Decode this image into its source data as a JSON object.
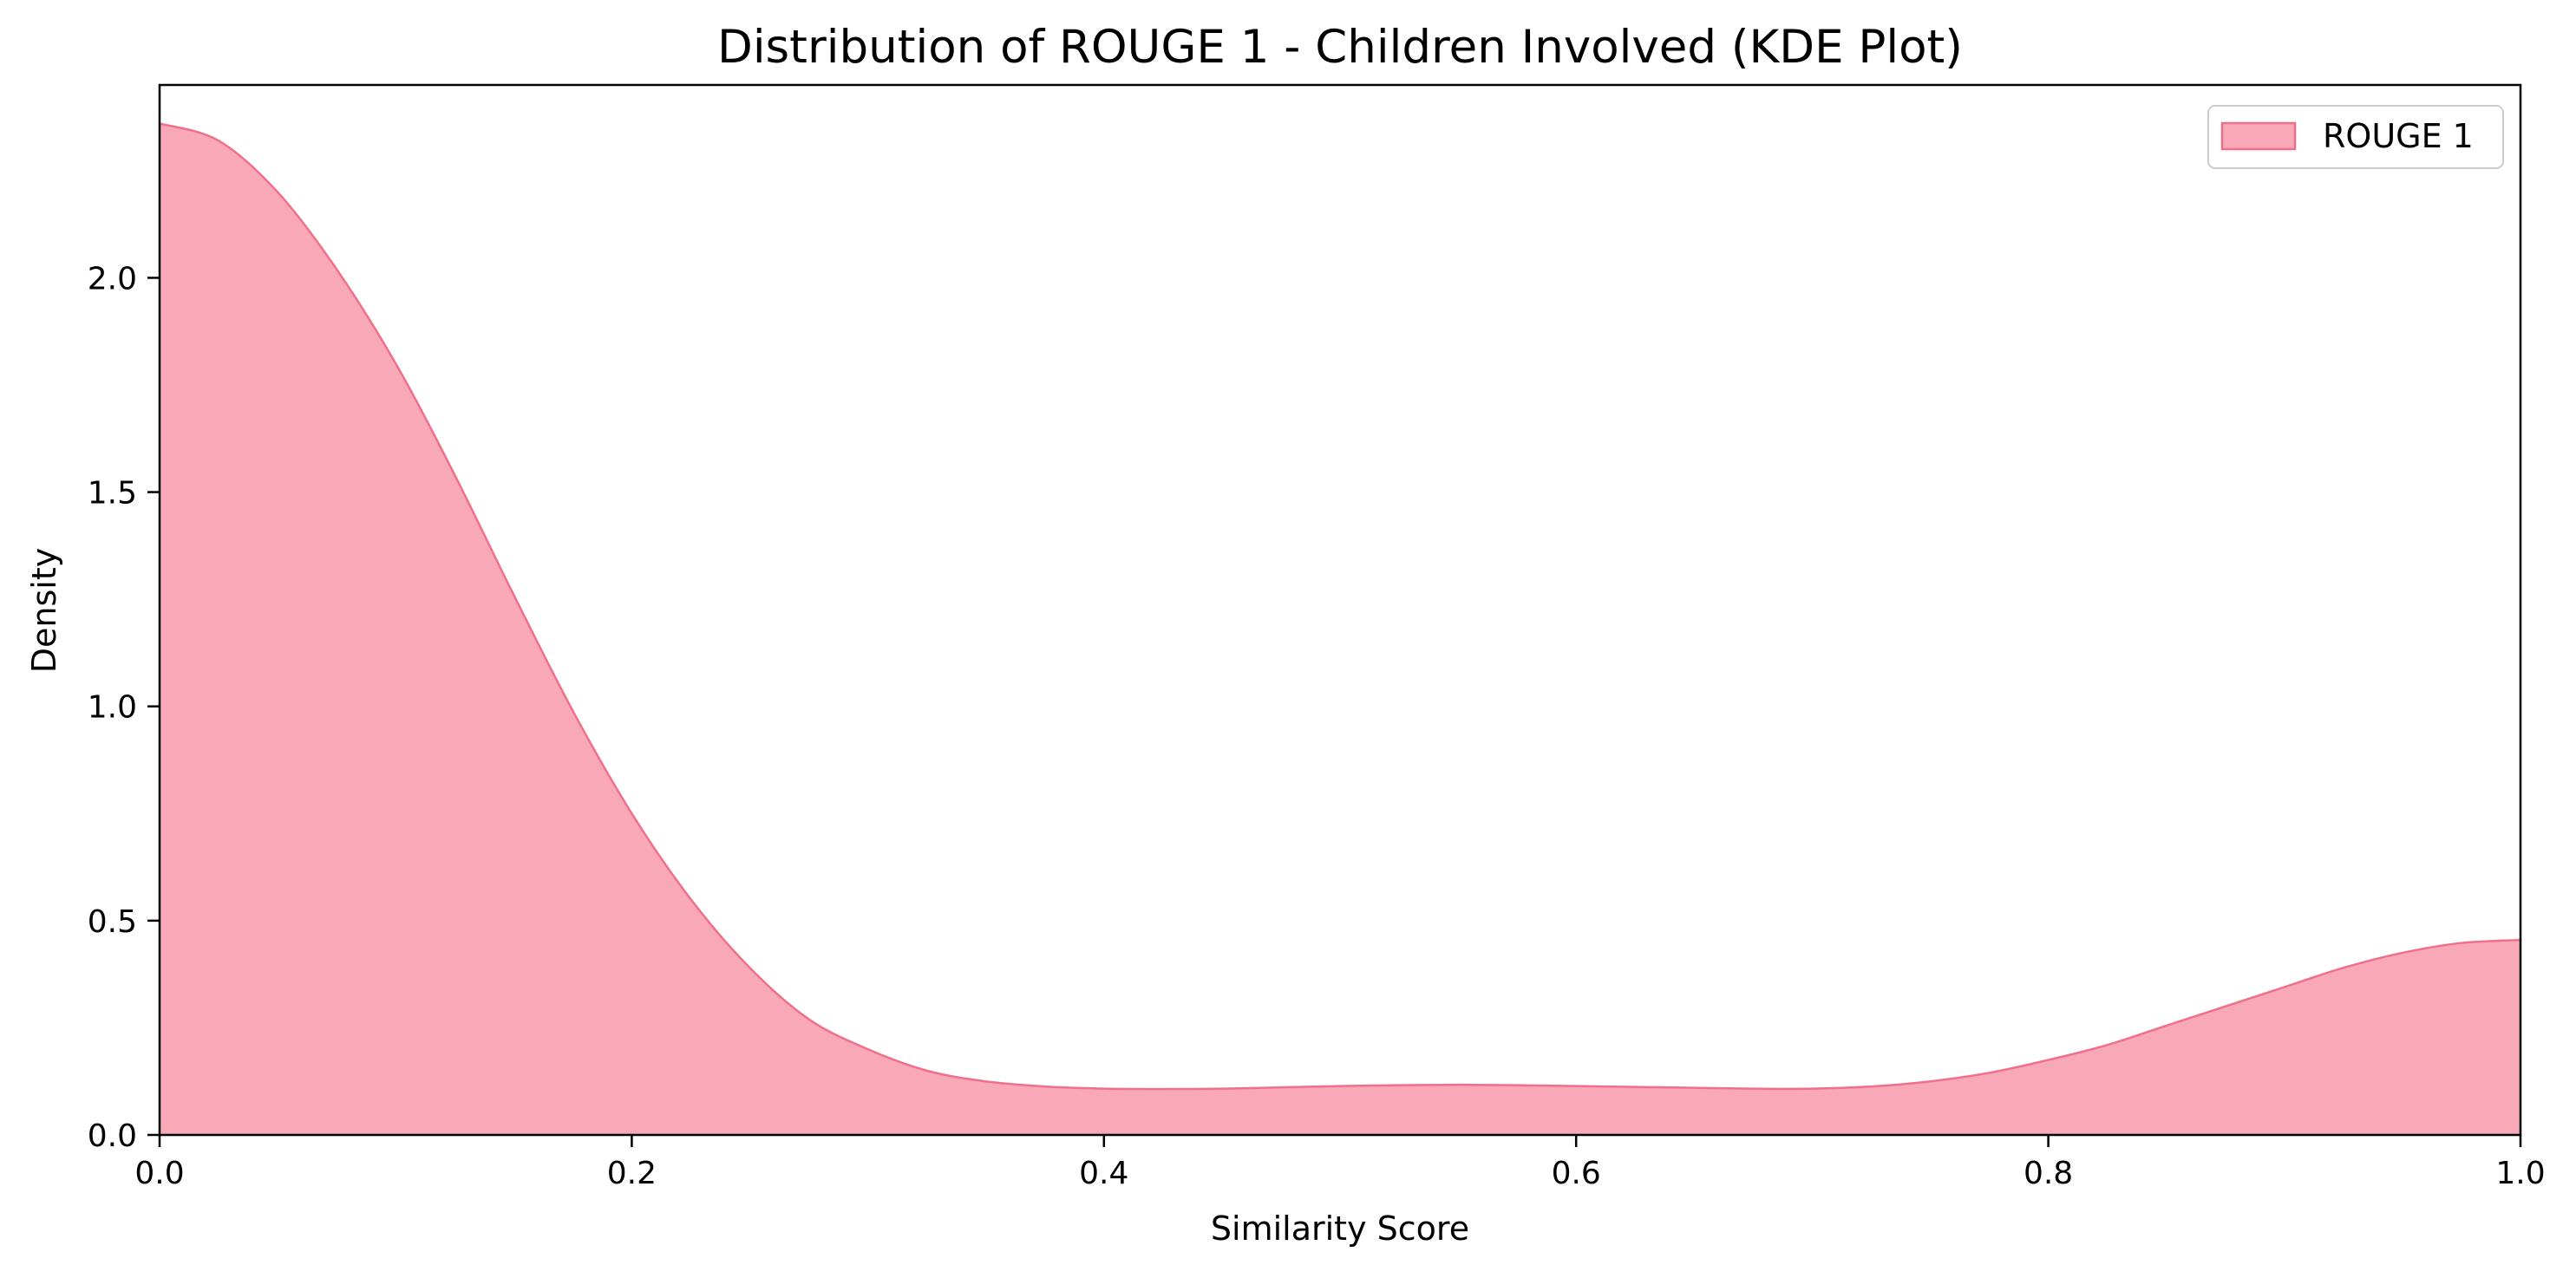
{
  "chart_data": {
    "type": "area",
    "title": "Distribution of ROUGE 1 - Children Involved (KDE Plot)",
    "xlabel": "Similarity Score",
    "ylabel": "Density",
    "xlim": [
      0.0,
      1.0
    ],
    "ylim": [
      0.0,
      2.45
    ],
    "xticks": [
      "0.0",
      "0.2",
      "0.4",
      "0.6",
      "0.8",
      "1.0"
    ],
    "yticks": [
      "0.0",
      "0.5",
      "1.0",
      "1.5",
      "2.0"
    ],
    "grid": false,
    "legend_position": "top-right",
    "series": [
      {
        "name": "ROUGE 1",
        "fill_color": "#f8a8b7",
        "line_color": "#f0708c",
        "x": [
          0.0,
          0.025,
          0.05,
          0.075,
          0.1,
          0.125,
          0.15,
          0.175,
          0.2,
          0.225,
          0.25,
          0.275,
          0.3,
          0.325,
          0.35,
          0.375,
          0.4,
          0.425,
          0.45,
          0.475,
          0.5,
          0.525,
          0.55,
          0.575,
          0.6,
          0.625,
          0.65,
          0.675,
          0.7,
          0.725,
          0.75,
          0.775,
          0.8,
          0.825,
          0.85,
          0.875,
          0.9,
          0.925,
          0.95,
          0.975,
          1.0
        ],
        "y": [
          2.36,
          2.32,
          2.2,
          2.02,
          1.8,
          1.54,
          1.26,
          0.99,
          0.75,
          0.55,
          0.39,
          0.27,
          0.2,
          0.15,
          0.125,
          0.113,
          0.108,
          0.107,
          0.108,
          0.111,
          0.114,
          0.116,
          0.117,
          0.116,
          0.114,
          0.112,
          0.11,
          0.108,
          0.108,
          0.113,
          0.125,
          0.145,
          0.175,
          0.21,
          0.255,
          0.3,
          0.345,
          0.39,
          0.425,
          0.448,
          0.455
        ]
      }
    ]
  }
}
